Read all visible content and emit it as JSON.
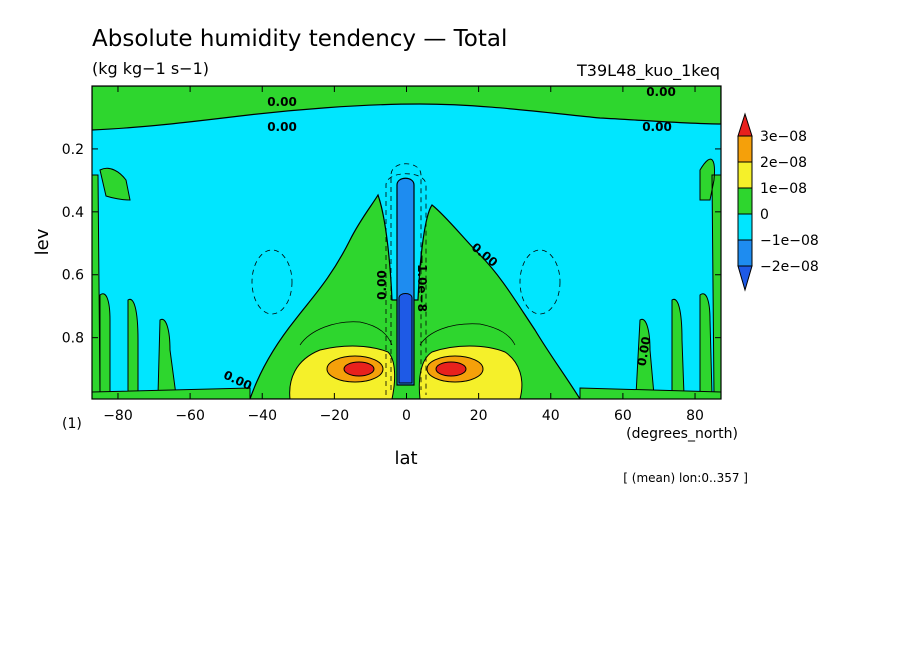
{
  "chart_data": {
    "type": "heatmap",
    "title": "Absolute humidity tendency — Total",
    "subtitle": "(kg kg−1 s−1)",
    "experiment": "T39L48_kuo_1keq",
    "xlabel": "lat",
    "x_units": "(degrees_north)",
    "ylabel": "lev",
    "y_units": "(1)",
    "footnote": "[ (mean) lon:0..357 ]",
    "xlim": [
      -87.2,
      87.2
    ],
    "ylim": [
      0.995,
      0.0
    ],
    "x_ticks": [
      "−80",
      "−60",
      "−40",
      "−20",
      "0",
      "20",
      "40",
      "60",
      "80"
    ],
    "x_tick_values": [
      -80,
      -60,
      -40,
      -20,
      0,
      20,
      40,
      60,
      80
    ],
    "y_ticks": [
      "0.2",
      "0.4",
      "0.6",
      "0.8"
    ],
    "y_tick_values": [
      0.2,
      0.4,
      0.6,
      0.8
    ],
    "contour_labels": [
      "0.00",
      "0.00",
      "0.00",
      "0.00",
      "0.00",
      "0.00",
      "0.00",
      "0.00",
      "−1.0e−8"
    ],
    "colorbar": {
      "labels": [
        "3e−08",
        "2e−08",
        "1e−08",
        "0",
        "−1e−08",
        "−2e−08"
      ],
      "levels": [
        3e-08,
        2e-08,
        1e-08,
        0,
        -1e-08,
        -2e-08
      ],
      "colors": [
        "#e8211d",
        "#f5a00a",
        "#f5f02a",
        "#2ed62e",
        "#00e6ff",
        "#1e8cf0",
        "#1e5ae6"
      ]
    },
    "colors": {
      "band_lt_m2e8": "#1e5ae6",
      "band_m2e8_m1e8": "#1e8cf0",
      "band_m1e8_0": "#00e6ff",
      "band_0_1e8": "#2ed62e",
      "band_1e8_2e8": "#f5f02a",
      "band_2e8_3e8": "#f5a00a",
      "band_gt_3e8": "#e8211d"
    }
  }
}
